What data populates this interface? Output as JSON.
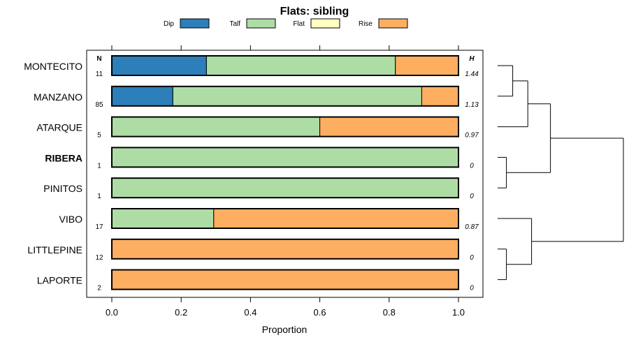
{
  "chart_data": {
    "type": "bar",
    "orientation": "horizontal",
    "stacked": true,
    "title": "Flats: sibling",
    "xlabel": "Proportion",
    "ylabel": "",
    "xlim": [
      0,
      1
    ],
    "xticks": [
      "0.0",
      "0.2",
      "0.4",
      "0.6",
      "0.8",
      "1.0"
    ],
    "n_header": "N",
    "h_header": "H",
    "legend_position": "top",
    "legend": [
      {
        "name": "Dip",
        "color": "#2c7fb8"
      },
      {
        "name": "Talf",
        "color": "#addda4"
      },
      {
        "name": "Flat",
        "color": "#ffffbf"
      },
      {
        "name": "Rise",
        "color": "#fdae61"
      }
    ],
    "series": [
      {
        "name": "Dip",
        "values": [
          0.273,
          0.176,
          0,
          0,
          0,
          0,
          0,
          0
        ]
      },
      {
        "name": "Talf",
        "values": [
          0.545,
          0.718,
          0.6,
          1,
          1,
          0.294,
          0,
          0
        ]
      },
      {
        "name": "Flat",
        "values": [
          0,
          0,
          0,
          0,
          0,
          0,
          0,
          0
        ]
      },
      {
        "name": "Rise",
        "values": [
          0.182,
          0.106,
          0.4,
          0,
          0,
          0.706,
          1,
          1
        ]
      }
    ],
    "categories": [
      "MONTECITO",
      "MANZANO",
      "ATARQUE",
      "RIBERA",
      "PINITOS",
      "VIBO",
      "LITTLEPINE",
      "LAPORTE"
    ],
    "bold_category": "RIBERA",
    "n_values": [
      "11",
      "85",
      "5",
      "1",
      "1",
      "17",
      "12",
      "2"
    ],
    "h_values": [
      "1.44",
      "1.13",
      "0.97",
      "0",
      "0",
      "0.87",
      "0",
      "0"
    ],
    "dendrogram": {
      "description": "hierarchical clustering of categories",
      "merges": [
        {
          "left": "MONTECITO",
          "right": "MANZANO",
          "height": 0.12
        },
        {
          "left": "RIBERA",
          "right": "PINITOS",
          "height": 0.07
        },
        {
          "left": "LITTLEPINE",
          "right": "LAPORTE",
          "height": 0.07
        },
        {
          "left": "merge0",
          "right": "ATARQUE",
          "height": 0.24
        },
        {
          "left": "merge3",
          "right": "merge1",
          "height": 0.42
        },
        {
          "left": "VIBO",
          "right": "merge2",
          "height": 0.27
        },
        {
          "left": "merge4",
          "right": "merge5",
          "height": 1.0
        }
      ]
    }
  }
}
